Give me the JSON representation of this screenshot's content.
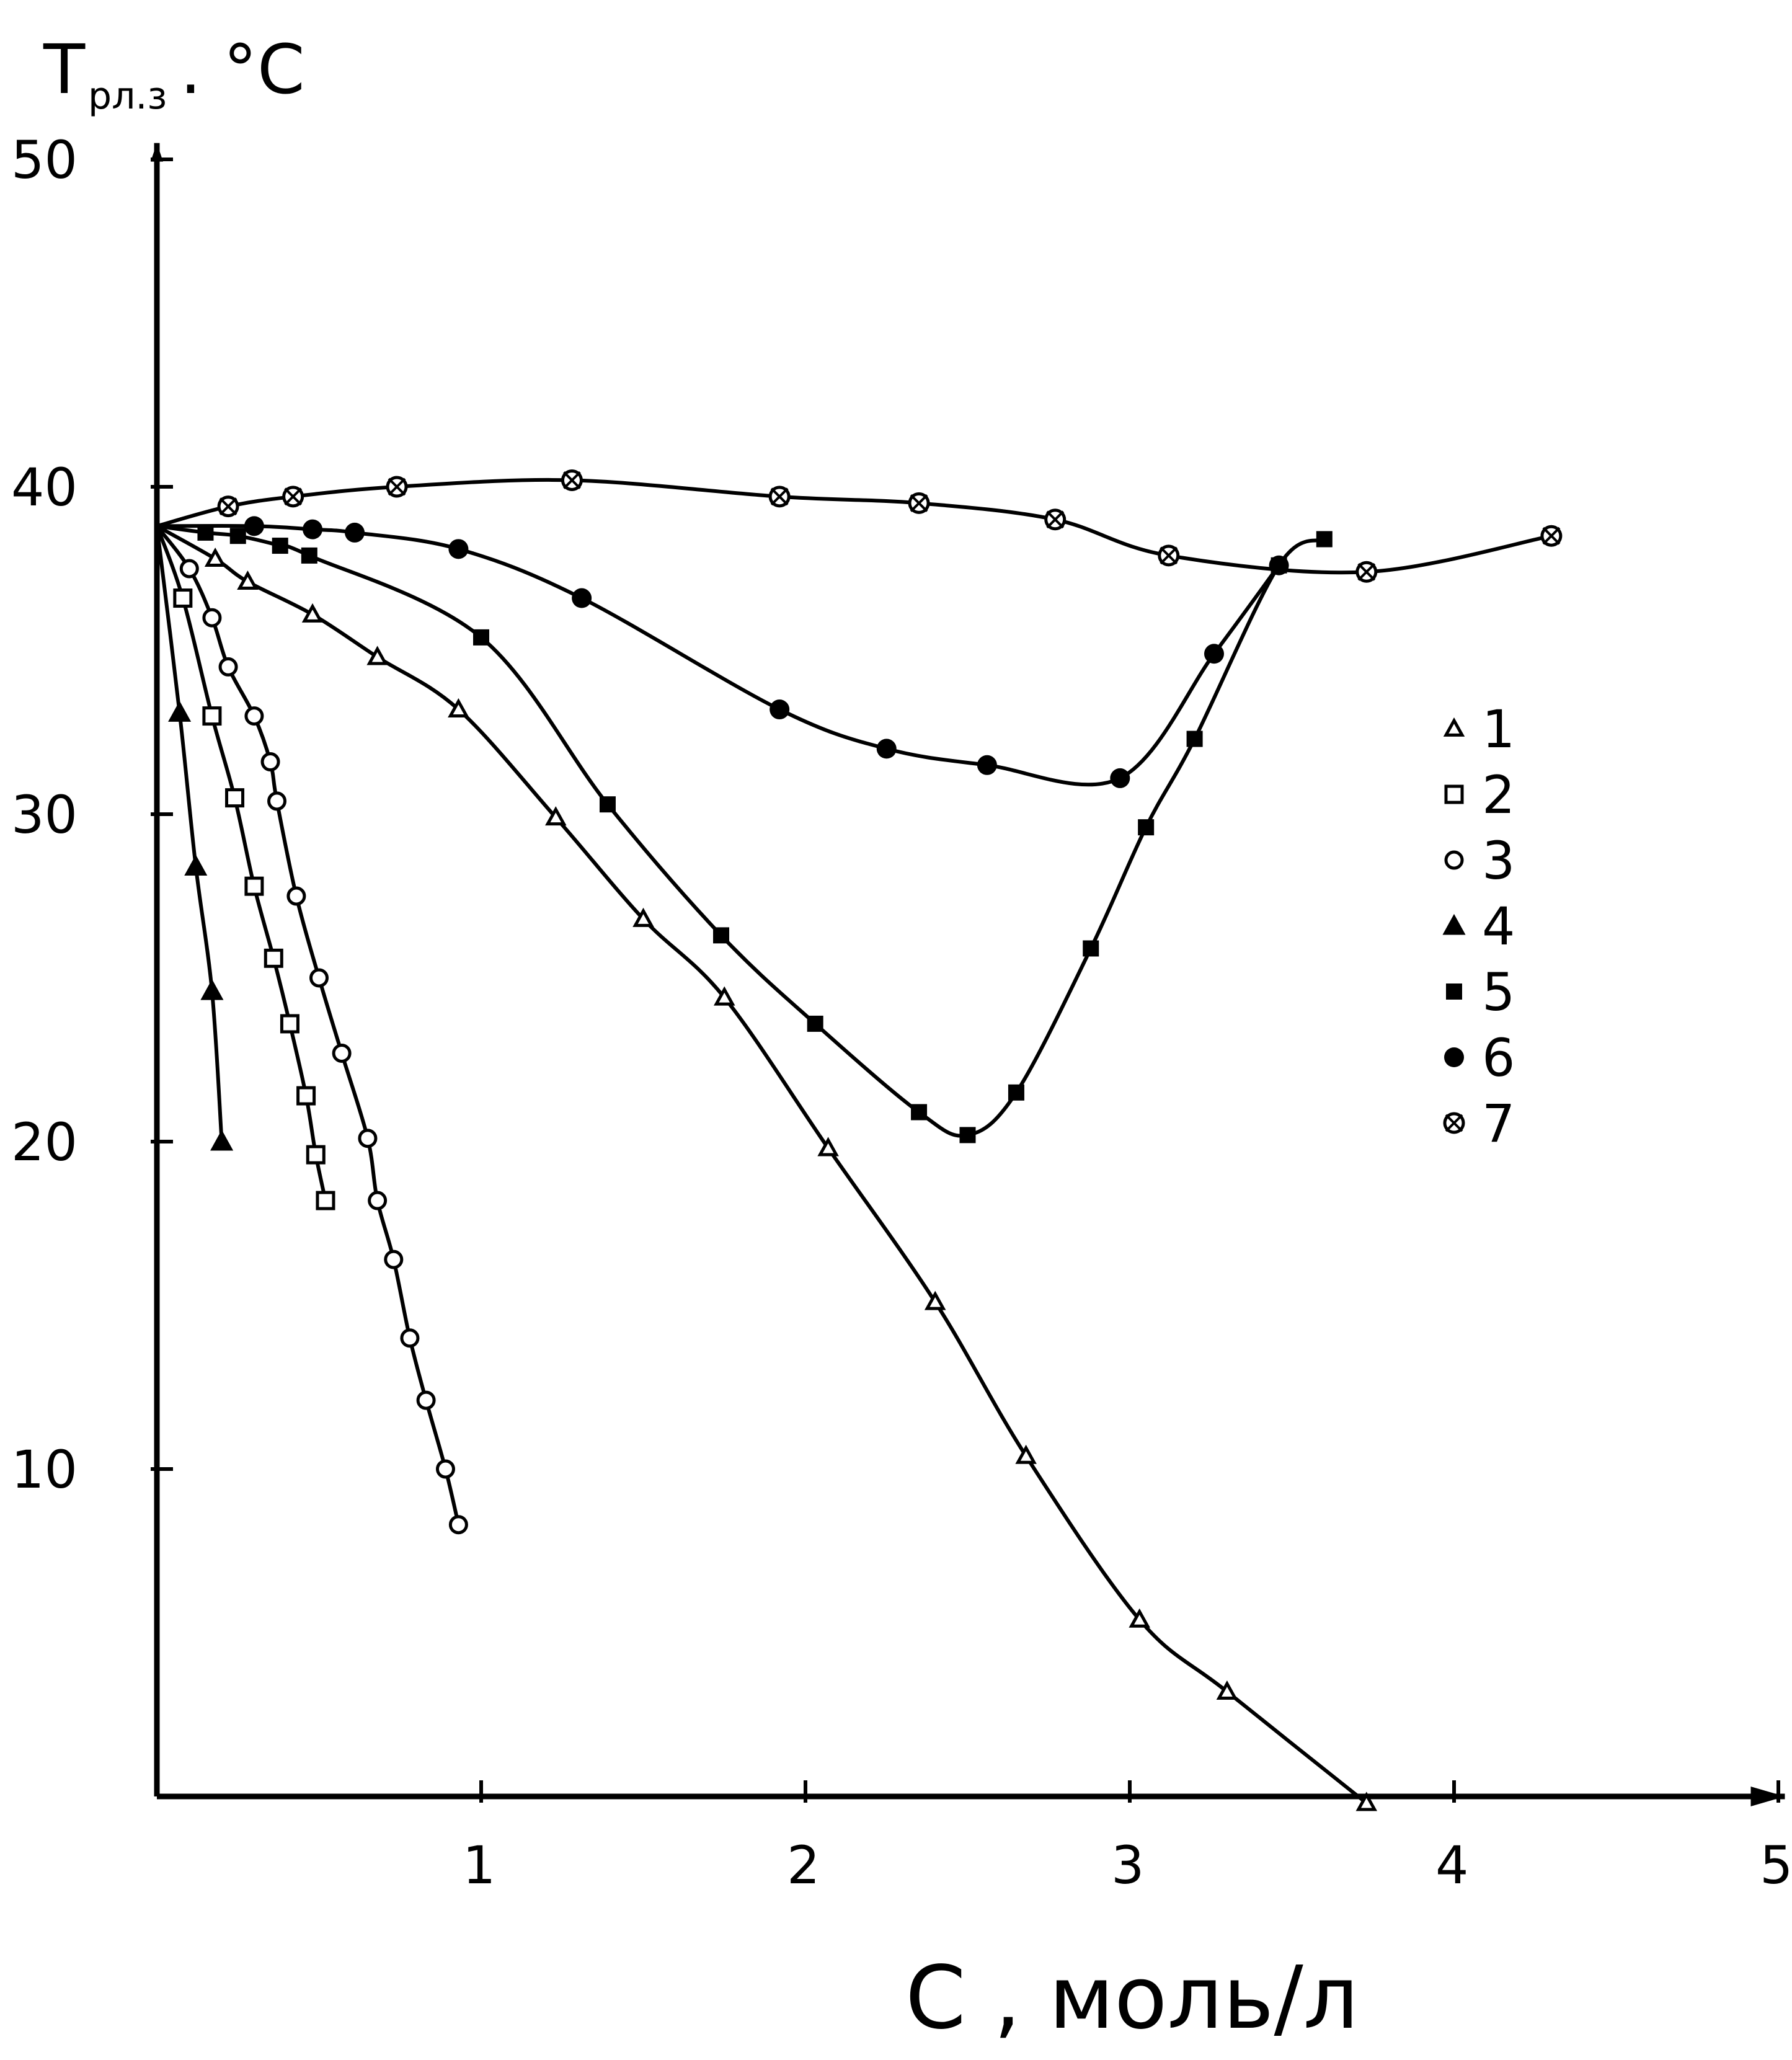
{
  "chart_data": {
    "type": "line",
    "ylabel": "T",
    "ylabel_sub": "рл.з",
    "ylabel_unit": ". °C",
    "xlabel": "C , моль/л",
    "xlim": [
      0,
      5
    ],
    "ylim": [
      0,
      50
    ],
    "xticks": [
      "1",
      "2",
      "3",
      "4",
      "5"
    ],
    "xtick_values": [
      1,
      2,
      3,
      4,
      5
    ],
    "yticks": [
      "10",
      "20",
      "30",
      "40",
      "50"
    ],
    "ytick_values": [
      10,
      20,
      30,
      40,
      50
    ],
    "grid": false,
    "legend_position": "right",
    "series": [
      {
        "name": "1",
        "marker": "open-triangle",
        "points": [
          [
            0,
            38.8
          ],
          [
            0.18,
            37.8
          ],
          [
            0.28,
            37.1
          ],
          [
            0.48,
            36.1
          ],
          [
            0.68,
            34.8
          ],
          [
            0.93,
            33.2
          ],
          [
            1.23,
            29.9
          ],
          [
            1.5,
            26.8
          ],
          [
            1.75,
            24.4
          ],
          [
            2.07,
            19.8
          ],
          [
            2.4,
            15.1
          ],
          [
            2.68,
            10.4
          ],
          [
            3.03,
            5.4
          ],
          [
            3.3,
            3.2
          ],
          [
            3.73,
            -0.2
          ]
        ]
      },
      {
        "name": "2",
        "marker": "open-square",
        "points": [
          [
            0,
            38.8
          ],
          [
            0.08,
            36.6
          ],
          [
            0.17,
            33.0
          ],
          [
            0.24,
            30.5
          ],
          [
            0.3,
            27.8
          ],
          [
            0.36,
            25.6
          ],
          [
            0.41,
            23.6
          ],
          [
            0.46,
            21.4
          ],
          [
            0.49,
            19.6
          ],
          [
            0.52,
            18.2
          ]
        ]
      },
      {
        "name": "3",
        "marker": "open-circle",
        "points": [
          [
            0,
            38.8
          ],
          [
            0.1,
            37.5
          ],
          [
            0.17,
            36.0
          ],
          [
            0.22,
            34.5
          ],
          [
            0.3,
            33.0
          ],
          [
            0.35,
            31.6
          ],
          [
            0.37,
            30.4
          ],
          [
            0.43,
            27.5
          ],
          [
            0.5,
            25.0
          ],
          [
            0.57,
            22.7
          ],
          [
            0.65,
            20.1
          ],
          [
            0.68,
            18.2
          ],
          [
            0.73,
            16.4
          ],
          [
            0.78,
            14.0
          ],
          [
            0.83,
            12.1
          ],
          [
            0.89,
            10.0
          ],
          [
            0.93,
            8.3
          ]
        ]
      },
      {
        "name": "4",
        "marker": "filled-triangle",
        "points": [
          [
            0,
            38.8
          ],
          [
            0.07,
            33.1
          ],
          [
            0.12,
            28.4
          ],
          [
            0.17,
            24.6
          ],
          [
            0.2,
            20.0
          ]
        ]
      },
      {
        "name": "5",
        "marker": "filled-square",
        "points": [
          [
            0,
            38.8
          ],
          [
            0.15,
            38.6
          ],
          [
            0.25,
            38.5
          ],
          [
            0.38,
            38.2
          ],
          [
            0.47,
            37.9
          ],
          [
            1.0,
            35.4
          ],
          [
            1.39,
            30.3
          ],
          [
            1.74,
            26.3
          ],
          [
            2.03,
            23.6
          ],
          [
            2.35,
            20.9
          ],
          [
            2.5,
            20.2
          ],
          [
            2.65,
            21.5
          ],
          [
            2.88,
            25.9
          ],
          [
            3.05,
            29.6
          ],
          [
            3.2,
            32.3
          ],
          [
            3.46,
            37.6
          ],
          [
            3.6,
            38.4
          ]
        ]
      },
      {
        "name": "6",
        "marker": "filled-circle",
        "points": [
          [
            0,
            38.8
          ],
          [
            0.3,
            38.8
          ],
          [
            0.48,
            38.7
          ],
          [
            0.61,
            38.6
          ],
          [
            0.93,
            38.1
          ],
          [
            1.31,
            36.6
          ],
          [
            1.92,
            33.2
          ],
          [
            2.25,
            32.0
          ],
          [
            2.56,
            31.5
          ],
          [
            2.97,
            31.1
          ],
          [
            3.26,
            34.9
          ],
          [
            3.46,
            37.6
          ]
        ]
      },
      {
        "name": "7",
        "marker": "crossed-circle",
        "points": [
          [
            0,
            38.8
          ],
          [
            0.22,
            39.4
          ],
          [
            0.42,
            39.7
          ],
          [
            0.74,
            40.0
          ],
          [
            1.28,
            40.2
          ],
          [
            1.92,
            39.7
          ],
          [
            2.35,
            39.5
          ],
          [
            2.77,
            39.0
          ],
          [
            3.12,
            37.9
          ],
          [
            3.73,
            37.4
          ],
          [
            4.3,
            38.5
          ]
        ]
      }
    ]
  }
}
